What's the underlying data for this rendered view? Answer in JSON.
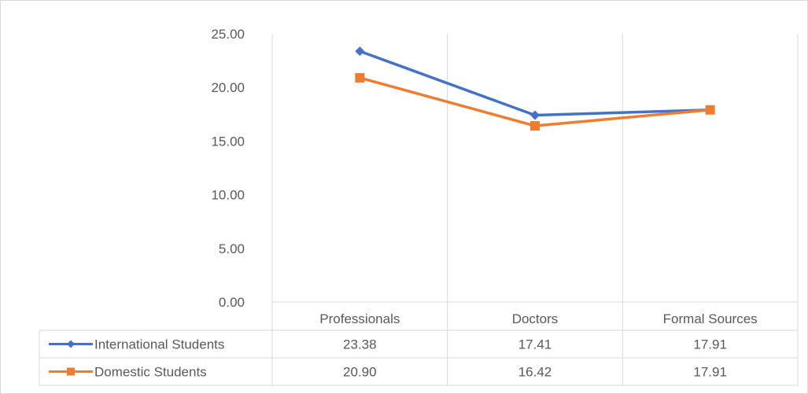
{
  "chart_data": {
    "type": "line",
    "categories": [
      "Professionals",
      "Doctors",
      "Formal Sources"
    ],
    "series": [
      {
        "name": "International Students",
        "values": [
          23.38,
          17.41,
          17.91
        ],
        "color": "#4472C4",
        "marker": "diamond"
      },
      {
        "name": "Domestic Students",
        "values": [
          20.9,
          16.42,
          17.91
        ],
        "color": "#ED7D31",
        "marker": "square"
      }
    ],
    "ylim": [
      0,
      25
    ],
    "yticks": [
      "0.00",
      "5.00",
      "10.00",
      "15.00",
      "20.00",
      "25.00"
    ],
    "grid": "vertical category gridlines",
    "data_table": true,
    "data_table_values": [
      [
        "23.38",
        "17.41",
        "17.91"
      ],
      [
        "20.90",
        "16.42",
        "17.91"
      ]
    ]
  }
}
